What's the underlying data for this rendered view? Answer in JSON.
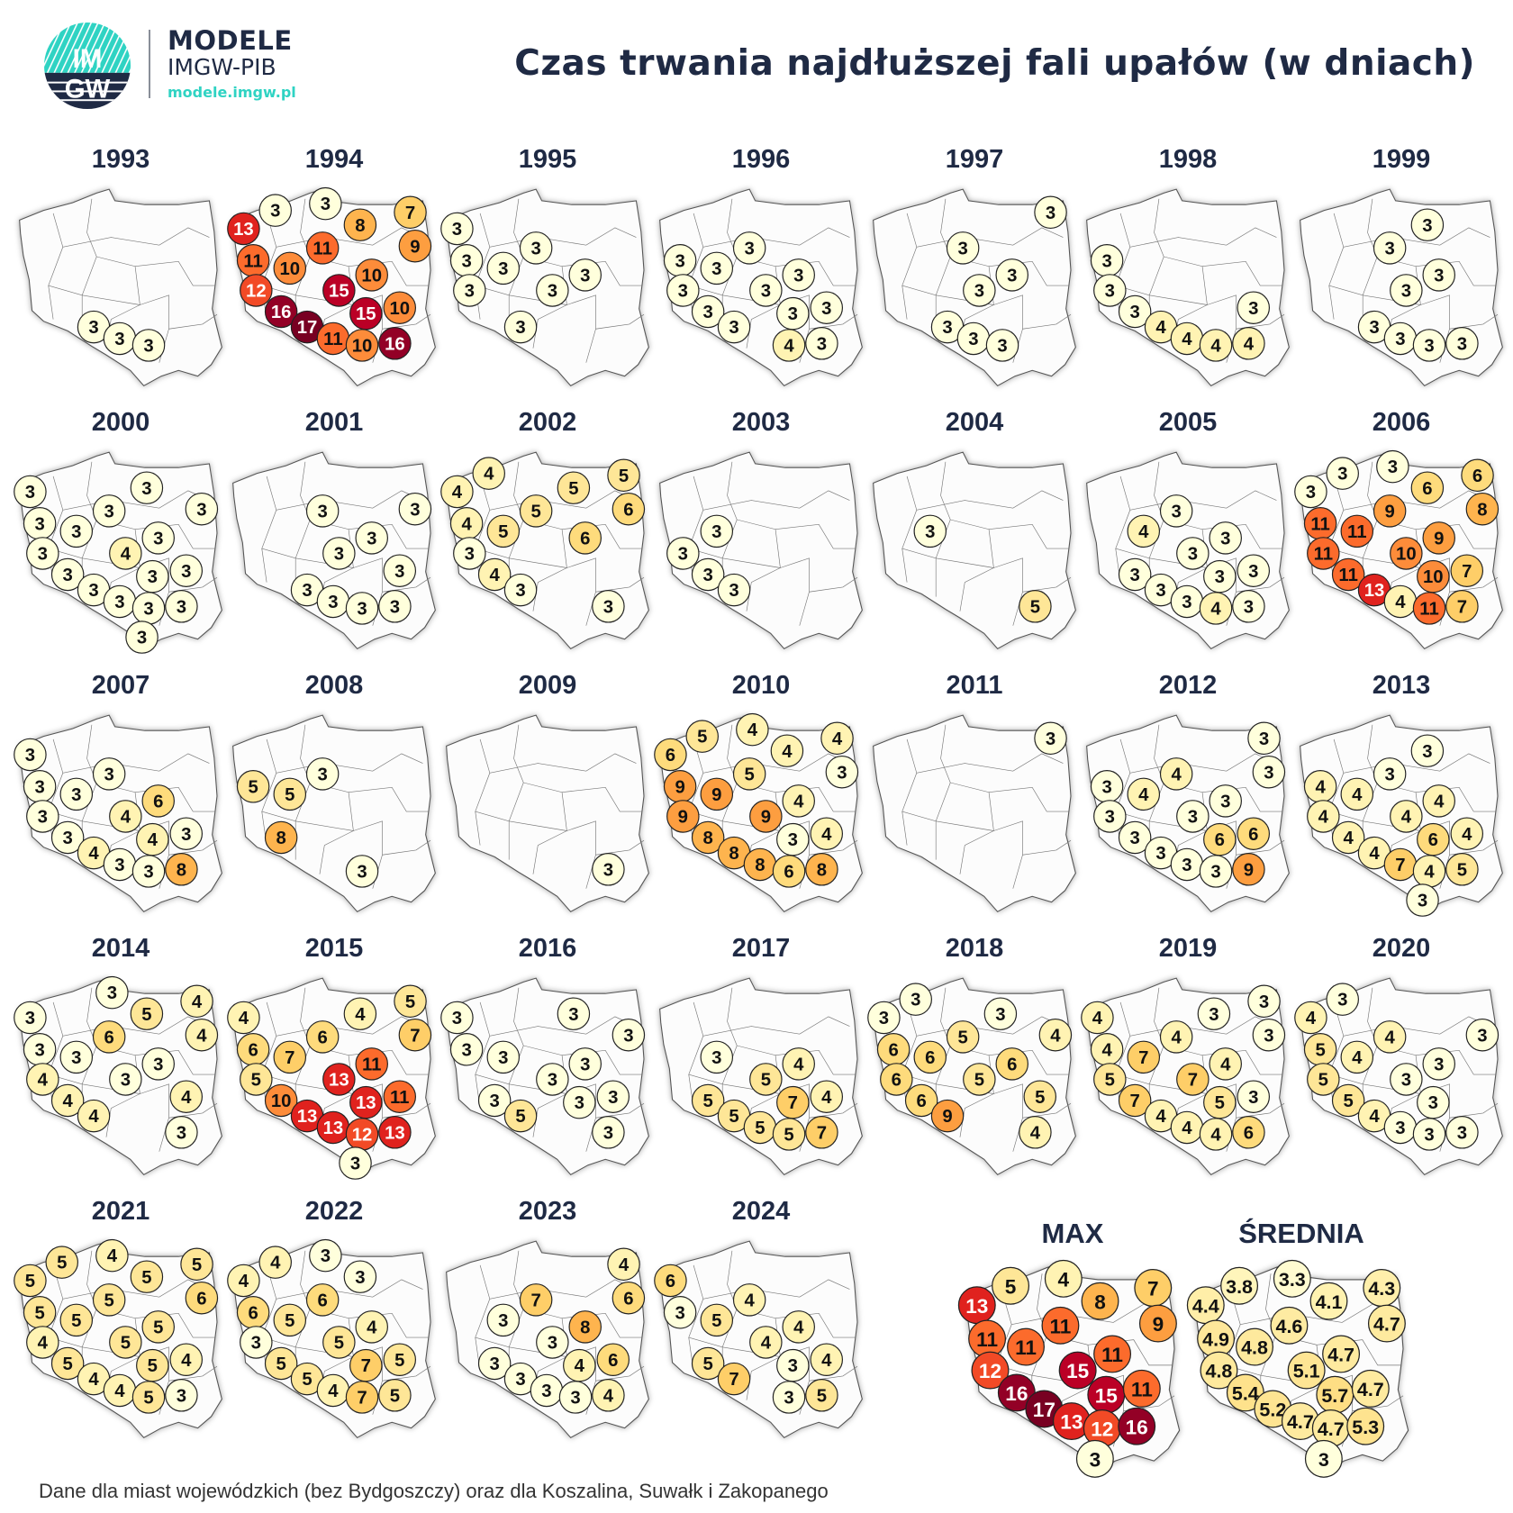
{
  "header": {
    "logo_text_top": "IM",
    "logo_text_bottom": "GW",
    "brand_line1": "MODELE",
    "brand_line2": "IMGW-PIB",
    "brand_url": "modele.imgw.pl",
    "title": "Czas trwania najdłuższej fali upałów (w dniach)"
  },
  "footer": {
    "note": "Dane dla miast wojewódzkich (bez Bydgoszczy) oraz dla Koszalina, Suwałk i Zakopanego"
  },
  "colors": {
    "title": "#1f2a44",
    "logo_teal": "#2fd3c3",
    "logo_navy": "#1f2a44"
  },
  "chart_data": {
    "type": "map",
    "station_count": 20,
    "color_scale": [
      [
        3,
        "#ffffdc"
      ],
      [
        4,
        "#fff3b3"
      ],
      [
        5,
        "#fee697"
      ],
      [
        6,
        "#fedb7c"
      ],
      [
        7,
        "#fece68"
      ],
      [
        8,
        "#feb44e"
      ],
      [
        9,
        "#fd9e40"
      ],
      [
        10,
        "#fd8c3a"
      ],
      [
        11,
        "#fc6b2c"
      ],
      [
        12,
        "#f24a26"
      ],
      [
        13,
        "#e0221e"
      ],
      [
        15,
        "#bb0026"
      ],
      [
        16,
        "#930026"
      ],
      [
        17,
        "#780022"
      ]
    ],
    "years": [
      {
        "label": "1993",
        "values": [
          null,
          null,
          null,
          null,
          null,
          null,
          null,
          null,
          null,
          null,
          null,
          null,
          null,
          null,
          null,
          3,
          3,
          3,
          null,
          null
        ]
      },
      {
        "label": "1994",
        "values": [
          13,
          3,
          3,
          8,
          7,
          9,
          11,
          10,
          11,
          10,
          12,
          15,
          16,
          15,
          10,
          17,
          11,
          10,
          16,
          null
        ]
      },
      {
        "label": "1995",
        "values": [
          3,
          null,
          null,
          null,
          null,
          null,
          3,
          3,
          3,
          3,
          3,
          3,
          null,
          null,
          null,
          3,
          null,
          null,
          null,
          null
        ]
      },
      {
        "label": "1996",
        "values": [
          null,
          null,
          null,
          null,
          null,
          null,
          3,
          3,
          3,
          3,
          3,
          3,
          3,
          3,
          3,
          3,
          null,
          4,
          3,
          null
        ]
      },
      {
        "label": "1997",
        "values": [
          null,
          null,
          null,
          null,
          3,
          null,
          null,
          null,
          3,
          3,
          null,
          3,
          null,
          null,
          null,
          3,
          3,
          3,
          null,
          null
        ]
      },
      {
        "label": "1998",
        "values": [
          null,
          null,
          null,
          null,
          null,
          null,
          3,
          null,
          null,
          null,
          3,
          null,
          3,
          null,
          3,
          4,
          4,
          4,
          4,
          null
        ]
      },
      {
        "label": "1999",
        "values": [
          null,
          null,
          null,
          3,
          null,
          null,
          null,
          null,
          3,
          3,
          null,
          3,
          null,
          null,
          null,
          3,
          3,
          3,
          3,
          null
        ]
      },
      {
        "label": "2000",
        "values": [
          3,
          null,
          null,
          3,
          null,
          3,
          3,
          3,
          3,
          3,
          3,
          4,
          3,
          3,
          3,
          3,
          3,
          3,
          3,
          3
        ]
      },
      {
        "label": "2001",
        "values": [
          null,
          null,
          null,
          null,
          null,
          3,
          null,
          null,
          3,
          3,
          null,
          3,
          null,
          null,
          3,
          3,
          3,
          3,
          3,
          null
        ]
      },
      {
        "label": "2002",
        "values": [
          4,
          4,
          null,
          5,
          5,
          6,
          4,
          5,
          5,
          6,
          3,
          null,
          4,
          null,
          null,
          3,
          null,
          null,
          3,
          null
        ]
      },
      {
        "label": "2003",
        "values": [
          null,
          null,
          null,
          null,
          null,
          null,
          null,
          3,
          null,
          null,
          3,
          null,
          3,
          null,
          null,
          3,
          null,
          null,
          null,
          null
        ]
      },
      {
        "label": "2004",
        "values": [
          null,
          null,
          null,
          null,
          null,
          null,
          null,
          3,
          null,
          null,
          null,
          null,
          null,
          null,
          null,
          null,
          null,
          null,
          5,
          null
        ]
      },
      {
        "label": "2005",
        "values": [
          null,
          null,
          null,
          null,
          null,
          null,
          null,
          4,
          3,
          3,
          null,
          3,
          3,
          3,
          3,
          3,
          3,
          4,
          3,
          null
        ]
      },
      {
        "label": "2006",
        "values": [
          3,
          3,
          3,
          6,
          6,
          8,
          11,
          11,
          9,
          9,
          11,
          10,
          11,
          10,
          7,
          13,
          4,
          11,
          7,
          null
        ]
      },
      {
        "label": "2007",
        "values": [
          3,
          null,
          null,
          null,
          null,
          null,
          3,
          3,
          3,
          6,
          3,
          4,
          3,
          4,
          3,
          4,
          3,
          3,
          8,
          null
        ]
      },
      {
        "label": "2008",
        "values": [
          null,
          null,
          null,
          null,
          null,
          null,
          5,
          5,
          3,
          null,
          null,
          null,
          8,
          null,
          null,
          null,
          null,
          3,
          null,
          null
        ]
      },
      {
        "label": "2009",
        "values": [
          null,
          null,
          null,
          null,
          null,
          null,
          null,
          null,
          null,
          null,
          null,
          null,
          null,
          null,
          null,
          null,
          null,
          null,
          3,
          null
        ]
      },
      {
        "label": "2010",
        "values": [
          6,
          5,
          4,
          4,
          4,
          3,
          9,
          9,
          5,
          4,
          9,
          9,
          8,
          3,
          4,
          8,
          8,
          6,
          8,
          null
        ]
      },
      {
        "label": "2011",
        "values": [
          null,
          null,
          null,
          null,
          3,
          null,
          null,
          null,
          null,
          null,
          null,
          null,
          null,
          null,
          null,
          null,
          null,
          null,
          null,
          null
        ]
      },
      {
        "label": "2012",
        "values": [
          null,
          null,
          null,
          null,
          3,
          3,
          3,
          4,
          4,
          3,
          3,
          3,
          3,
          6,
          6,
          3,
          3,
          3,
          9,
          null
        ]
      },
      {
        "label": "2013",
        "values": [
          null,
          null,
          null,
          3,
          null,
          null,
          4,
          4,
          3,
          4,
          4,
          4,
          4,
          6,
          4,
          4,
          7,
          4,
          5,
          3
        ]
      },
      {
        "label": "2014",
        "values": [
          3,
          null,
          3,
          5,
          4,
          4,
          3,
          3,
          6,
          3,
          4,
          3,
          4,
          null,
          4,
          4,
          null,
          null,
          3,
          null
        ]
      },
      {
        "label": "2015",
        "values": [
          4,
          null,
          null,
          4,
          5,
          7,
          6,
          7,
          6,
          11,
          5,
          13,
          10,
          13,
          11,
          13,
          13,
          12,
          13,
          3
        ]
      },
      {
        "label": "2016",
        "values": [
          3,
          null,
          null,
          3,
          null,
          3,
          3,
          3,
          null,
          3,
          null,
          3,
          3,
          3,
          3,
          5,
          null,
          null,
          3,
          null
        ]
      },
      {
        "label": "2017",
        "values": [
          null,
          null,
          null,
          null,
          null,
          null,
          null,
          3,
          null,
          4,
          null,
          5,
          5,
          7,
          4,
          5,
          5,
          5,
          7,
          null
        ]
      },
      {
        "label": "2018",
        "values": [
          3,
          3,
          null,
          3,
          null,
          4,
          6,
          6,
          5,
          6,
          6,
          5,
          6,
          null,
          5,
          9,
          null,
          null,
          4,
          null
        ]
      },
      {
        "label": "2019",
        "values": [
          4,
          null,
          null,
          3,
          3,
          3,
          4,
          7,
          4,
          4,
          5,
          7,
          7,
          5,
          3,
          4,
          4,
          4,
          6,
          null
        ]
      },
      {
        "label": "2020",
        "values": [
          4,
          3,
          null,
          null,
          null,
          3,
          5,
          4,
          4,
          3,
          5,
          3,
          5,
          3,
          null,
          4,
          3,
          3,
          3,
          null
        ]
      },
      {
        "label": "2021",
        "values": [
          5,
          5,
          4,
          5,
          5,
          6,
          5,
          5,
          5,
          5,
          4,
          5,
          5,
          5,
          4,
          4,
          4,
          5,
          3,
          null
        ]
      },
      {
        "label": "2022",
        "values": [
          4,
          4,
          3,
          3,
          null,
          null,
          6,
          5,
          6,
          4,
          3,
          5,
          5,
          7,
          5,
          5,
          4,
          7,
          5,
          null
        ]
      },
      {
        "label": "2023",
        "values": [
          null,
          null,
          null,
          null,
          4,
          6,
          null,
          3,
          7,
          8,
          null,
          3,
          3,
          4,
          6,
          3,
          3,
          3,
          4,
          null
        ]
      },
      {
        "label": "2024",
        "values": [
          6,
          null,
          null,
          null,
          null,
          null,
          3,
          5,
          4,
          4,
          null,
          4,
          5,
          3,
          4,
          7,
          null,
          3,
          5,
          null
        ]
      }
    ],
    "summary": [
      {
        "label": "MAX",
        "values": [
          13,
          5,
          4,
          8,
          7,
          9,
          11,
          11,
          11,
          11,
          12,
          15,
          16,
          15,
          11,
          17,
          13,
          12,
          16,
          3
        ]
      },
      {
        "label": "ŚREDNIA",
        "values": [
          4.4,
          3.8,
          3.3,
          4.1,
          4.3,
          4.7,
          4.9,
          4.8,
          4.6,
          4.7,
          4.8,
          5.1,
          5.4,
          5.7,
          4.7,
          5.2,
          4.7,
          4.7,
          5.3,
          3
        ]
      }
    ]
  }
}
